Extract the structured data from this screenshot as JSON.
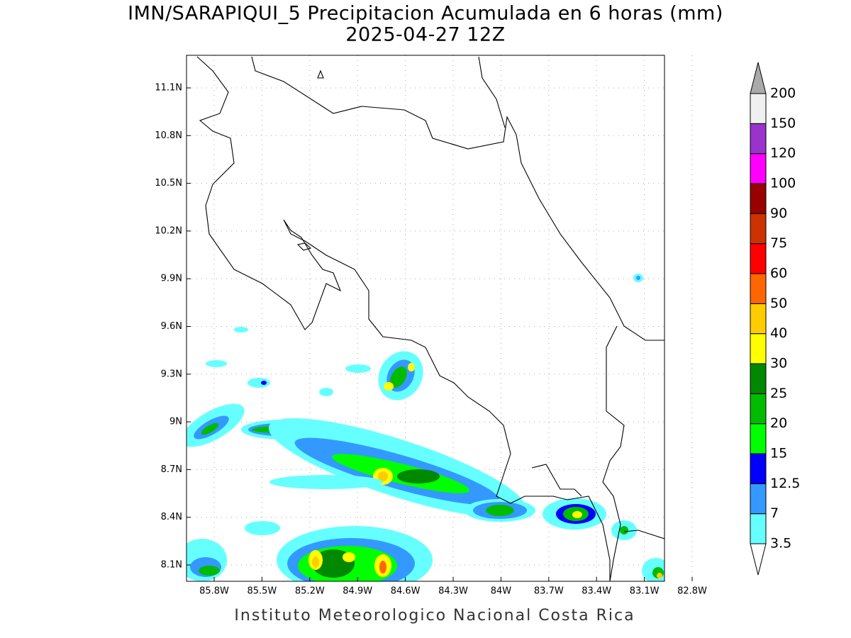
{
  "header": {
    "title": "IMN/SARAPIQUI_5 Precipitacion Acumulada en 6 horas (mm)",
    "subtitle": "2025-04-27 12Z"
  },
  "map": {
    "lon_ticks": [
      "85.8W",
      "85.5W",
      "85.2W",
      "84.9W",
      "84.6W",
      "84.3W",
      "84W",
      "83.7W",
      "83.4W",
      "83.1W",
      "82.8W"
    ],
    "lat_ticks": [
      "11.1N",
      "10.8N",
      "10.5N",
      "10.2N",
      "9.9N",
      "9.6N",
      "9.3N",
      "9N",
      "8.7N",
      "8.4N",
      "8.1N"
    ]
  },
  "colorbar": {
    "levels": [
      3.5,
      7,
      12.5,
      15,
      20,
      25,
      30,
      40,
      50,
      60,
      75,
      90,
      100,
      120,
      150,
      200
    ],
    "colors": [
      "#66ffff",
      "#3399ff",
      "#0000ff",
      "#00ff00",
      "#00bb00",
      "#008800",
      "#ffff00",
      "#ffcc00",
      "#ff6600",
      "#ff0000",
      "#cc3300",
      "#990000",
      "#ff00ff",
      "#9933cc",
      "#f0f0f0"
    ],
    "under_color": "#ffffff",
    "over_color": "#aaaaaa"
  },
  "footer": "Instituto Meteorologico Nacional Costa Rica"
}
